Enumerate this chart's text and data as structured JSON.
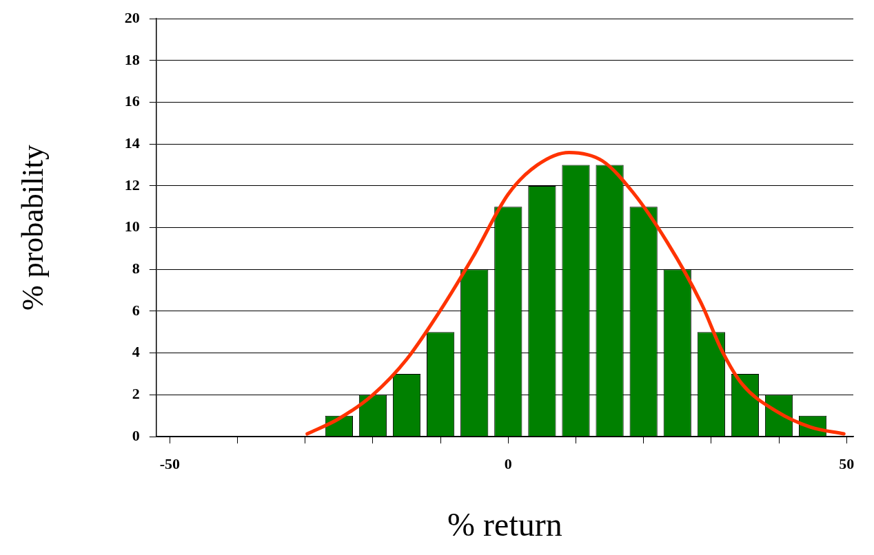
{
  "chart_data": {
    "type": "histogram",
    "xlabel": "% return",
    "ylabel": "% probability",
    "bins": [
      -27.5,
      -22.5,
      -17.5,
      -12.5,
      -7.5,
      -2.5,
      2.5,
      7.5,
      12.5,
      17.5,
      22.5,
      27.5,
      32.5,
      37.5,
      42.5,
      47.5
    ],
    "values": [
      1,
      2,
      3,
      5,
      8,
      11,
      12,
      13,
      13,
      11,
      8,
      5,
      3,
      2,
      1
    ],
    "color": "#008000",
    "series": [
      {
        "type": "line",
        "color": "#ff3300",
        "x": [
          -29.7,
          -25.1,
          -20,
          -15,
          -10.1,
          -5.2,
          0,
          4.3,
          9,
          13.9,
          18.4,
          23.5,
          28.5,
          31.6,
          34.6,
          39.7,
          44.7,
          49.6
        ],
        "values": [
          0.13,
          0.84,
          2.0,
          3.7,
          6.0,
          8.6,
          11.6,
          13.0,
          13.6,
          13.2,
          11.7,
          9.3,
          6.4,
          4.1,
          2.5,
          1.2,
          0.45,
          0.13
        ]
      }
    ],
    "xlim": [
      -52,
      51
    ],
    "xticks": [
      -50,
      {
        "value": -40,
        "label": null
      },
      {
        "value": -30,
        "label": null
      },
      {
        "value": -20,
        "label": null
      },
      {
        "value": -10,
        "label": null
      },
      0,
      {
        "value": 10,
        "label": null
      },
      {
        "value": 20,
        "label": null
      },
      {
        "value": 30,
        "label": null
      },
      {
        "value": 40,
        "label": null
      },
      50
    ],
    "ylim": [
      0,
      20
    ],
    "yticks": [
      0,
      2,
      4,
      6,
      8,
      10,
      12,
      14,
      16,
      18,
      20
    ],
    "grid": "y",
    "legend": false,
    "marker": "none",
    "line_style": "solid"
  }
}
